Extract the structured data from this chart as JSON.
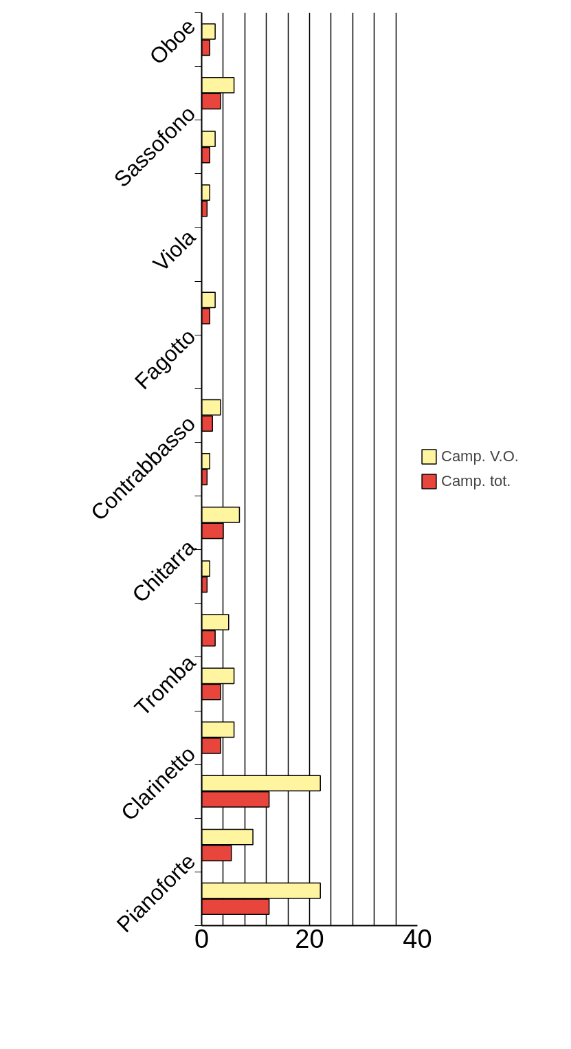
{
  "chart_data": {
    "type": "bar",
    "orientation": "horizontal",
    "categories": [
      "Oboe",
      null,
      "Sassofono",
      null,
      "Viola",
      null,
      "Fagotto",
      null,
      "Contrabbasso",
      null,
      "Chitarra",
      null,
      "Tromba",
      null,
      "Clarinetto",
      null,
      "Pianoforte"
    ],
    "series": [
      {
        "name": "Camp. V.O.",
        "color": "#fff5a0",
        "values": [
          2.5,
          6,
          2.5,
          1.5,
          null,
          2.5,
          null,
          3.5,
          1.5,
          7,
          1.5,
          5,
          6,
          6,
          22,
          9.5,
          22
        ]
      },
      {
        "name": "Camp. tot.",
        "color": "#e8453c",
        "values": [
          1.5,
          3.5,
          1.5,
          1,
          null,
          1.5,
          null,
          2,
          1,
          4,
          1,
          2.5,
          3.5,
          3.5,
          12.5,
          5.5,
          12.5
        ]
      }
    ],
    "xlim": [
      0,
      40
    ],
    "xticks": [
      0,
      {
        "value": 4,
        "label": null
      },
      {
        "value": 8,
        "label": null
      },
      {
        "value": 12,
        "label": null
      },
      {
        "value": 16,
        "label": null
      },
      20,
      {
        "value": 24,
        "label": null
      },
      {
        "value": 28,
        "label": null
      },
      {
        "value": 32,
        "label": null
      },
      {
        "value": 36,
        "label": null
      },
      40
    ],
    "grid": "x",
    "legend": "right"
  }
}
